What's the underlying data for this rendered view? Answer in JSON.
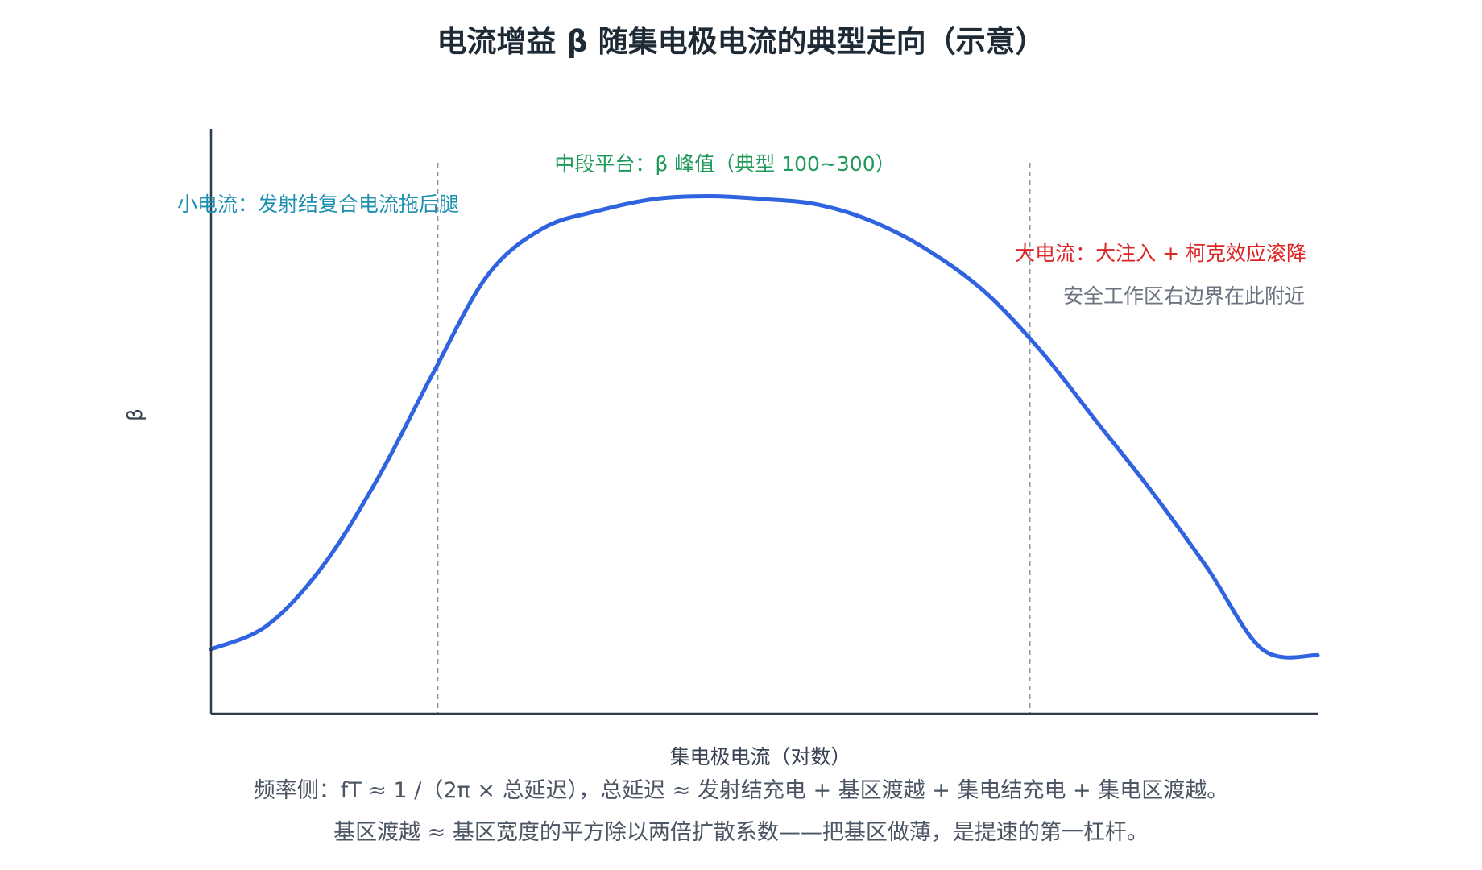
{
  "colors": {
    "background": "#ffffff",
    "axis": "#2f3a4a",
    "curve": "#2f63e0",
    "divider": "#8a97b0",
    "title": "#1f2a37",
    "low_note": "#1b8fb0",
    "mid_note": "#1e9a5a",
    "high_note": "#dc2626",
    "soa_note": "#6b7280",
    "footer": "#4b5563"
  },
  "chart_data": {
    "type": "line",
    "title": "电流增益 β 随集电极电流的典型走向（示意）",
    "xlabel": "集电极电流（对数）",
    "ylabel": "β",
    "x_scale": "log",
    "grid": false,
    "tick_labels": false,
    "xlim": [
      0,
      1
    ],
    "ylim": [
      0,
      1
    ],
    "series": [
      {
        "x": [
          0,
          0.05,
          0.1,
          0.15,
          0.2,
          0.25,
          0.3,
          0.35,
          0.4,
          0.45,
          0.5,
          0.55,
          0.6,
          0.65,
          0.7,
          0.75,
          0.8,
          0.85,
          0.9,
          0.95,
          1.0
        ],
        "values": [
          0.11,
          0.15,
          0.25,
          0.4,
          0.58,
          0.75,
          0.83,
          0.86,
          0.88,
          0.885,
          0.88,
          0.87,
          0.84,
          0.79,
          0.72,
          0.62,
          0.5,
          0.38,
          0.25,
          0.11,
          0.1
        ]
      }
    ],
    "regions": [
      {
        "label": "小电流：发射结复合电流拖后腿",
        "color": "#1b8fb0"
      },
      {
        "label": "中段平台：β 峰值（典型 100~300）",
        "color": "#1e9a5a"
      },
      {
        "label": "大电流：大注入 + 柯克效应滚降",
        "color": "#dc2626"
      }
    ],
    "dividers_x": [
      0.205,
      0.74
    ],
    "annotations": [
      "安全工作区右边界在此附近"
    ]
  },
  "footer": {
    "line1": "频率侧：fT ≈ 1 /（2π × 总延迟），总延迟 ≈ 发射结充电 + 基区渡越 + 集电结充电 + 集电区渡越。",
    "line2": "基区渡越 ≈ 基区宽度的平方除以两倍扩散系数——把基区做薄，是提速的第一杠杆。"
  }
}
